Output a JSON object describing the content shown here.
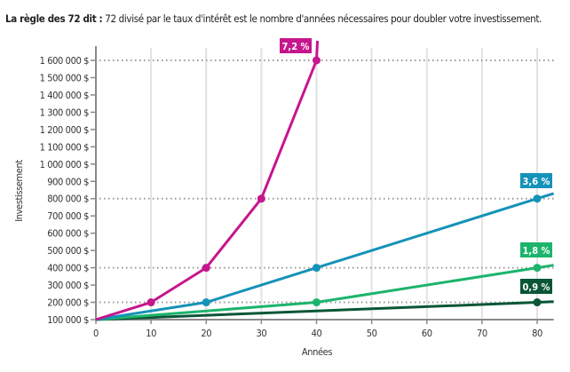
{
  "title_bold": "La règle des 72 dit :",
  "title_rest": " 72 divisé par le taux d'intérêt est le nombre d'années nécessaires pour doubler votre investissement.",
  "chart_data": {
    "type": "line",
    "xlabel": "Années",
    "ylabel": "Investissement",
    "xlim": [
      0,
      83
    ],
    "ylim": [
      100000,
      1600000
    ],
    "xticks": [
      0,
      10,
      20,
      30,
      40,
      50,
      60,
      70,
      80
    ],
    "xtick_labels": [
      "0",
      "10",
      "20",
      "30",
      "40",
      "50",
      "60",
      "70",
      "80"
    ],
    "yticks": [
      100000,
      200000,
      300000,
      400000,
      500000,
      600000,
      700000,
      800000,
      900000,
      1000000,
      1100000,
      1200000,
      1300000,
      1400000,
      1500000,
      1600000
    ],
    "ytick_labels": [
      "100 000 $",
      "200 000 $",
      "300 000 $",
      "400 000 $",
      "500 000 $",
      "600 000 $",
      "700 000 $",
      "800 000 $",
      "900 000 $",
      "1 000 000 $",
      "1 100 000 $",
      "1 200 000 $",
      "1 300 000 $",
      "1 400 000 $",
      "1 500 000 $",
      "1 600 000 $"
    ],
    "grid": "vertical",
    "reference_lines_y": [
      200000,
      400000,
      800000,
      1600000
    ],
    "series": [
      {
        "name": "7,2 %",
        "color": "#c6168d",
        "x": [
          0,
          10,
          20,
          30,
          40
        ],
        "y": [
          100000,
          200000,
          400000,
          800000,
          1600000
        ]
      },
      {
        "name": "3,6 %",
        "color": "#1592b8",
        "x": [
          0,
          20,
          40,
          80
        ],
        "y": [
          100000,
          200000,
          400000,
          800000
        ]
      },
      {
        "name": "1,8 %",
        "color": "#1cb46c",
        "x": [
          0,
          40,
          80
        ],
        "y": [
          100000,
          200000,
          400000
        ]
      },
      {
        "name": "0,9 %",
        "color": "#0a5637",
        "x": [
          0,
          80
        ],
        "y": [
          100000,
          200000
        ]
      }
    ]
  }
}
